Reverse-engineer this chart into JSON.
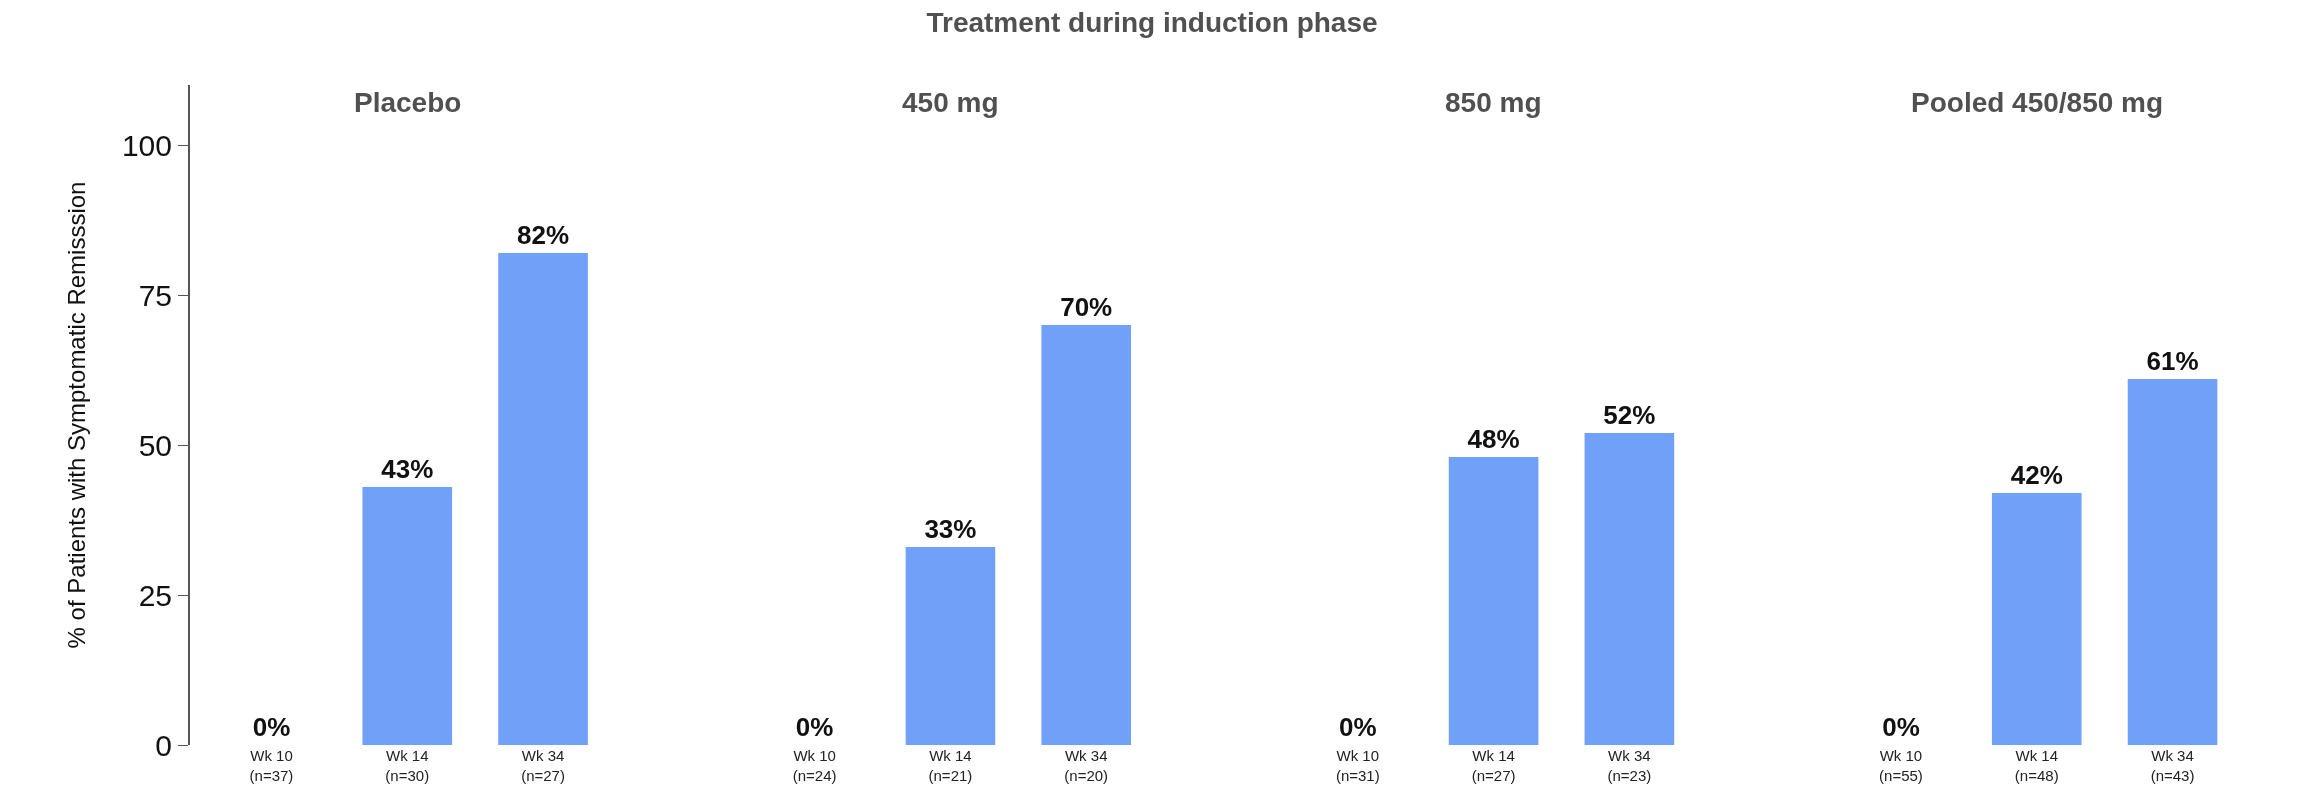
{
  "chart_data": {
    "type": "bar",
    "title": "Treatment during induction phase",
    "ylabel": "% of Patients with Symptomatic Remisssion",
    "categories": [
      "Wk 10\n(n=37)",
      "Wk 14\n(n=30)",
      "Wk 34\n(n=27)",
      null,
      "Wk 10\n(n=24)",
      "Wk 14\n(n=21)",
      "Wk 34\n(n=20)",
      null,
      "Wk 10\n(n=31)",
      "Wk 14\n(n=27)",
      "Wk 34\n(n=23)",
      null,
      "Wk 10\n(n=55)",
      "Wk 14\n(n=48)",
      "Wk 34\n(n=43)"
    ],
    "values": [
      0,
      43,
      82,
      null,
      0,
      33,
      70,
      null,
      0,
      48,
      52,
      null,
      0,
      42,
      61
    ],
    "value_labels": [
      "0%",
      "43%",
      "82%",
      null,
      "0%",
      "33%",
      "70%",
      null,
      "0%",
      "48%",
      "52%",
      null,
      "0%",
      "42%",
      "61%"
    ],
    "color": "#70a0f8",
    "annotations": [
      "Placebo",
      "450 mg",
      "850 mg",
      "Pooled 450/850 mg"
    ],
    "ylim": [
      0,
      110
    ],
    "yticks": [
      0,
      25,
      50,
      75,
      100
    ]
  }
}
